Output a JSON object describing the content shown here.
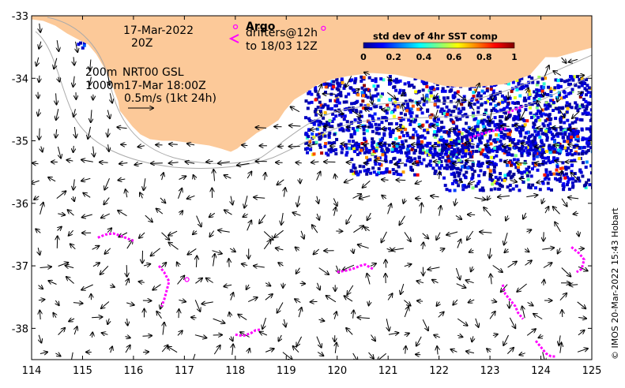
{
  "map": {
    "lon_range": [
      114,
      125
    ],
    "lat_range": [
      -38.5,
      -33
    ],
    "x_ticks": [
      "114",
      "115",
      "116",
      "117",
      "118",
      "119",
      "120",
      "121",
      "122",
      "123",
      "124",
      "125"
    ],
    "y_ticks": [
      "-33",
      "-34",
      "-35",
      "-36",
      "-37",
      "-38"
    ],
    "land_color": "#fcc999",
    "sst_color": "#0a1e8c",
    "drifter_color": "#ff00ff"
  },
  "annotations": {
    "date": "17-Mar-2022",
    "time": "20Z",
    "depth1": "200m",
    "product": "NRT00 GSL",
    "depth2": "1000m",
    "analysis_time": "17-Mar 18:00Z",
    "scale": "0.5m/s (1kt 24h)"
  },
  "legend": {
    "argo_label": "Argo",
    "drifters_label": "drifters@12h",
    "drifters_until": "to 18/03 12Z"
  },
  "colorbar": {
    "title": "std dev of 4hr SST comp",
    "ticks": [
      "0",
      "0.2",
      "0.4",
      "0.6",
      "0.8",
      "1"
    ]
  },
  "credit": "© IMOS 20-Mar-2022 15:43 Hobart",
  "drifter_tracks": [
    [
      [
        115.3,
        -36.55
      ],
      [
        115.45,
        -36.5
      ],
      [
        115.6,
        -36.48
      ],
      [
        115.75,
        -36.52
      ],
      [
        115.9,
        -36.57
      ],
      [
        116.0,
        -36.6
      ]
    ],
    [
      [
        116.5,
        -37.0
      ],
      [
        116.6,
        -37.1
      ],
      [
        116.7,
        -37.25
      ],
      [
        116.65,
        -37.4
      ],
      [
        116.6,
        -37.55
      ],
      [
        116.55,
        -37.65
      ]
    ],
    [
      [
        118.0,
        -38.1
      ],
      [
        118.15,
        -38.12
      ],
      [
        118.3,
        -38.08
      ],
      [
        118.4,
        -38.03
      ],
      [
        118.5,
        -38.02
      ]
    ],
    [
      [
        120.0,
        -37.1
      ],
      [
        120.15,
        -37.08
      ],
      [
        120.3,
        -37.05
      ],
      [
        120.45,
        -37.0
      ],
      [
        120.55,
        -36.98
      ],
      [
        120.7,
        -37.05
      ]
    ],
    [
      [
        123.25,
        -37.3
      ],
      [
        123.3,
        -37.45
      ],
      [
        123.4,
        -37.55
      ],
      [
        123.5,
        -37.65
      ],
      [
        123.55,
        -37.75
      ],
      [
        123.65,
        -37.85
      ]
    ],
    [
      [
        123.9,
        -38.2
      ],
      [
        124.0,
        -38.3
      ],
      [
        124.1,
        -38.4
      ],
      [
        124.2,
        -38.45
      ],
      [
        124.3,
        -38.45
      ]
    ],
    [
      [
        124.6,
        -36.7
      ],
      [
        124.75,
        -36.8
      ],
      [
        124.85,
        -36.9
      ],
      [
        124.8,
        -37.05
      ],
      [
        124.7,
        -37.1
      ]
    ],
    [
      [
        122.6,
        -34.95
      ],
      [
        122.8,
        -34.9
      ],
      [
        123.0,
        -34.85
      ],
      [
        123.2,
        -34.82
      ],
      [
        123.35,
        -34.8
      ]
    ],
    [
      [
        123.35,
        -34.55
      ],
      [
        123.5,
        -34.5
      ],
      [
        123.65,
        -34.45
      ]
    ]
  ],
  "argo_floats": [
    [
      117.05,
      -37.22
    ],
    [
      119.73,
      -33.2
    ]
  ]
}
